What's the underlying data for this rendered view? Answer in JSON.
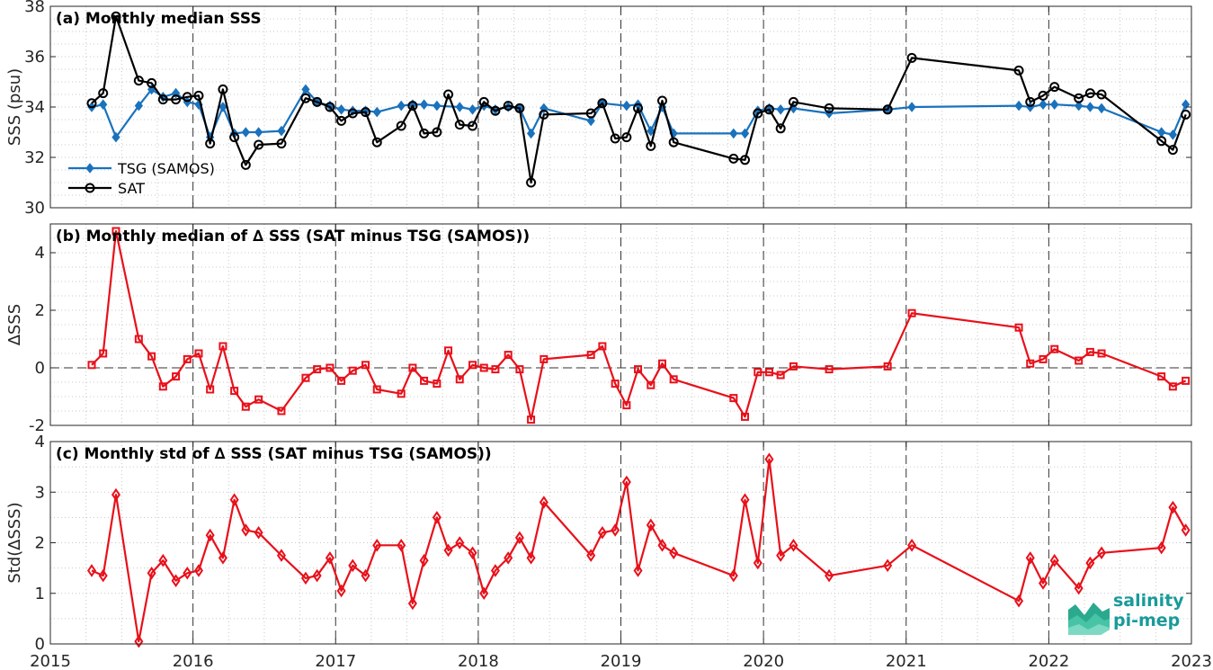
{
  "x_ticks": [
    "2015",
    "2016",
    "2017",
    "2018",
    "2019",
    "2020",
    "2021",
    "2022",
    "2023"
  ],
  "logo": {
    "line1": "salinity",
    "line2": "pi-mep"
  },
  "colors": {
    "tsg": "#1a72bd",
    "sat": "#000000",
    "delta": "#e8101a",
    "logo": "#1a9a9a"
  },
  "chart_data": [
    {
      "type": "line",
      "title": "(a) Monthly median SSS",
      "ylabel": "SSS (psu)",
      "ylim": [
        30,
        38
      ],
      "yticks": [
        30,
        32,
        34,
        36,
        38
      ],
      "xlim": [
        2015,
        2023
      ],
      "grid": true,
      "legend": "bottom-left",
      "series": [
        {
          "name": "TSG (SAMOS)",
          "marker": "diamond",
          "x": [
            2015.29,
            2015.37,
            2015.46,
            2015.62,
            2015.71,
            2015.79,
            2015.88,
            2015.96,
            2016.04,
            2016.12,
            2016.21,
            2016.29,
            2016.37,
            2016.46,
            2016.62,
            2016.79,
            2016.87,
            2016.96,
            2017.04,
            2017.12,
            2017.21,
            2017.29,
            2017.46,
            2017.54,
            2017.62,
            2017.71,
            2017.87,
            2017.96,
            2018.04,
            2018.12,
            2018.21,
            2018.29,
            2018.37,
            2018.46,
            2018.79,
            2018.87,
            2019.04,
            2019.12,
            2019.21,
            2019.29,
            2019.37,
            2019.79,
            2019.87,
            2019.96,
            2020.04,
            2020.12,
            2020.21,
            2020.46,
            2020.87,
            2021.04,
            2021.79,
            2021.87,
            2021.96,
            2022.04,
            2022.21,
            2022.29,
            2022.37,
            2022.79,
            2022.87,
            2022.96
          ],
          "values": [
            34.0,
            34.1,
            32.8,
            34.05,
            34.7,
            34.4,
            34.55,
            34.2,
            34.1,
            32.8,
            34.0,
            32.95,
            33.0,
            33.0,
            33.05,
            34.7,
            34.2,
            34.05,
            33.9,
            33.85,
            33.85,
            33.8,
            34.05,
            34.1,
            34.1,
            34.05,
            34.0,
            33.9,
            34.05,
            33.9,
            34.0,
            33.95,
            32.95,
            33.95,
            33.45,
            34.15,
            34.05,
            34.1,
            33.05,
            34.0,
            32.95,
            32.95,
            32.95,
            33.85,
            33.95,
            33.9,
            33.95,
            33.75,
            33.9,
            34.0,
            34.05,
            34.0,
            34.1,
            34.1,
            34.05,
            34.0,
            33.95,
            33.0,
            32.9,
            34.1
          ]
        },
        {
          "name": "SAT",
          "marker": "circle",
          "x": [
            2015.29,
            2015.37,
            2015.46,
            2015.62,
            2015.71,
            2015.79,
            2015.88,
            2015.96,
            2016.04,
            2016.12,
            2016.21,
            2016.29,
            2016.37,
            2016.46,
            2016.62,
            2016.79,
            2016.87,
            2016.96,
            2017.04,
            2017.12,
            2017.21,
            2017.29,
            2017.46,
            2017.54,
            2017.62,
            2017.71,
            2017.79,
            2017.87,
            2017.96,
            2018.04,
            2018.12,
            2018.21,
            2018.29,
            2018.37,
            2018.46,
            2018.79,
            2018.87,
            2018.96,
            2019.04,
            2019.12,
            2019.21,
            2019.29,
            2019.37,
            2019.79,
            2019.87,
            2019.96,
            2020.04,
            2020.12,
            2020.21,
            2020.46,
            2020.87,
            2021.04,
            2021.79,
            2021.87,
            2021.96,
            2022.04,
            2022.21,
            2022.29,
            2022.37,
            2022.79,
            2022.87,
            2022.96
          ],
          "values": [
            34.15,
            34.55,
            37.6,
            35.05,
            34.95,
            34.3,
            34.3,
            34.4,
            34.45,
            32.55,
            34.7,
            32.8,
            31.7,
            32.5,
            32.55,
            34.35,
            34.2,
            34.0,
            33.45,
            33.75,
            33.8,
            32.6,
            33.25,
            34.05,
            32.95,
            33.0,
            34.5,
            33.3,
            33.25,
            34.2,
            33.85,
            34.05,
            33.95,
            31.0,
            33.7,
            33.75,
            34.15,
            32.75,
            32.8,
            33.95,
            32.45,
            34.25,
            32.6,
            31.95,
            31.9,
            33.75,
            33.9,
            33.15,
            34.2,
            33.95,
            33.9,
            35.95,
            35.45,
            34.2,
            34.45,
            34.8,
            34.35,
            34.55,
            34.5,
            32.65,
            32.3,
            33.7
          ]
        }
      ]
    },
    {
      "type": "line",
      "title": "(b) Monthly median of ∆ SSS (SAT minus TSG (SAMOS))",
      "ylabel": "∆SSS",
      "ylim": [
        -2,
        5
      ],
      "yticks": [
        -2,
        0,
        2,
        4
      ],
      "xlim": [
        2015,
        2023
      ],
      "grid": true,
      "series": [
        {
          "marker": "square",
          "x": [
            2015.29,
            2015.37,
            2015.46,
            2015.62,
            2015.71,
            2015.79,
            2015.88,
            2015.96,
            2016.04,
            2016.12,
            2016.21,
            2016.29,
            2016.37,
            2016.46,
            2016.62,
            2016.79,
            2016.87,
            2016.96,
            2017.04,
            2017.12,
            2017.21,
            2017.29,
            2017.46,
            2017.54,
            2017.62,
            2017.71,
            2017.79,
            2017.87,
            2017.96,
            2018.04,
            2018.12,
            2018.21,
            2018.29,
            2018.37,
            2018.46,
            2018.79,
            2018.87,
            2018.96,
            2019.04,
            2019.12,
            2019.21,
            2019.29,
            2019.37,
            2019.79,
            2019.87,
            2019.96,
            2020.04,
            2020.12,
            2020.21,
            2020.46,
            2020.87,
            2021.04,
            2021.79,
            2021.87,
            2021.96,
            2022.04,
            2022.21,
            2022.29,
            2022.37,
            2022.79,
            2022.87,
            2022.96
          ],
          "values": [
            0.1,
            0.5,
            4.75,
            1.0,
            0.4,
            -0.65,
            -0.3,
            0.3,
            0.5,
            -0.75,
            0.75,
            -0.8,
            -1.35,
            -1.1,
            -1.5,
            -0.35,
            -0.05,
            0.0,
            -0.45,
            -0.1,
            0.1,
            -0.75,
            -0.9,
            0.0,
            -0.45,
            -0.55,
            0.6,
            -0.4,
            0.1,
            0.0,
            -0.05,
            0.45,
            -0.05,
            -1.8,
            0.3,
            0.45,
            0.75,
            -0.55,
            -1.3,
            -0.05,
            -0.6,
            0.15,
            -0.4,
            -1.05,
            -1.7,
            -0.15,
            -0.15,
            -0.25,
            0.05,
            -0.05,
            0.05,
            1.9,
            1.4,
            0.15,
            0.3,
            0.65,
            0.25,
            0.55,
            0.5,
            -0.3,
            -0.65,
            -0.45
          ]
        }
      ]
    },
    {
      "type": "line",
      "title": "(c) Monthly std of ∆ SSS (SAT minus TSG (SAMOS))",
      "ylabel": "Std(∆SSS)",
      "ylim": [
        0,
        4
      ],
      "yticks": [
        0,
        1,
        2,
        3,
        4
      ],
      "xlim": [
        2015,
        2023
      ],
      "grid": true,
      "series": [
        {
          "marker": "diamond",
          "x": [
            2015.29,
            2015.37,
            2015.46,
            2015.62,
            2015.71,
            2015.79,
            2015.88,
            2015.96,
            2016.04,
            2016.12,
            2016.21,
            2016.29,
            2016.37,
            2016.46,
            2016.62,
            2016.79,
            2016.87,
            2016.96,
            2017.04,
            2017.12,
            2017.21,
            2017.29,
            2017.46,
            2017.54,
            2017.62,
            2017.71,
            2017.79,
            2017.87,
            2017.96,
            2018.04,
            2018.12,
            2018.21,
            2018.29,
            2018.37,
            2018.46,
            2018.79,
            2018.87,
            2018.96,
            2019.04,
            2019.12,
            2019.21,
            2019.29,
            2019.37,
            2019.79,
            2019.87,
            2019.96,
            2020.04,
            2020.12,
            2020.21,
            2020.46,
            2020.87,
            2021.04,
            2021.79,
            2021.87,
            2021.96,
            2022.04,
            2022.21,
            2022.29,
            2022.37,
            2022.79,
            2022.87,
            2022.96
          ],
          "values": [
            1.45,
            1.35,
            2.95,
            0.05,
            1.4,
            1.65,
            1.25,
            1.4,
            1.45,
            2.15,
            1.7,
            2.85,
            2.25,
            2.2,
            1.75,
            1.3,
            1.35,
            1.7,
            1.05,
            1.55,
            1.35,
            1.95,
            1.95,
            0.8,
            1.65,
            2.5,
            1.85,
            2.0,
            1.8,
            1.0,
            1.45,
            1.7,
            2.1,
            1.7,
            2.8,
            1.75,
            2.2,
            2.25,
            3.2,
            1.45,
            2.35,
            1.95,
            1.8,
            1.35,
            2.85,
            1.6,
            3.65,
            1.75,
            1.95,
            1.35,
            1.55,
            1.95,
            0.85,
            1.7,
            1.2,
            1.65,
            1.1,
            1.6,
            1.8,
            1.9,
            2.7,
            2.25
          ]
        }
      ]
    }
  ]
}
